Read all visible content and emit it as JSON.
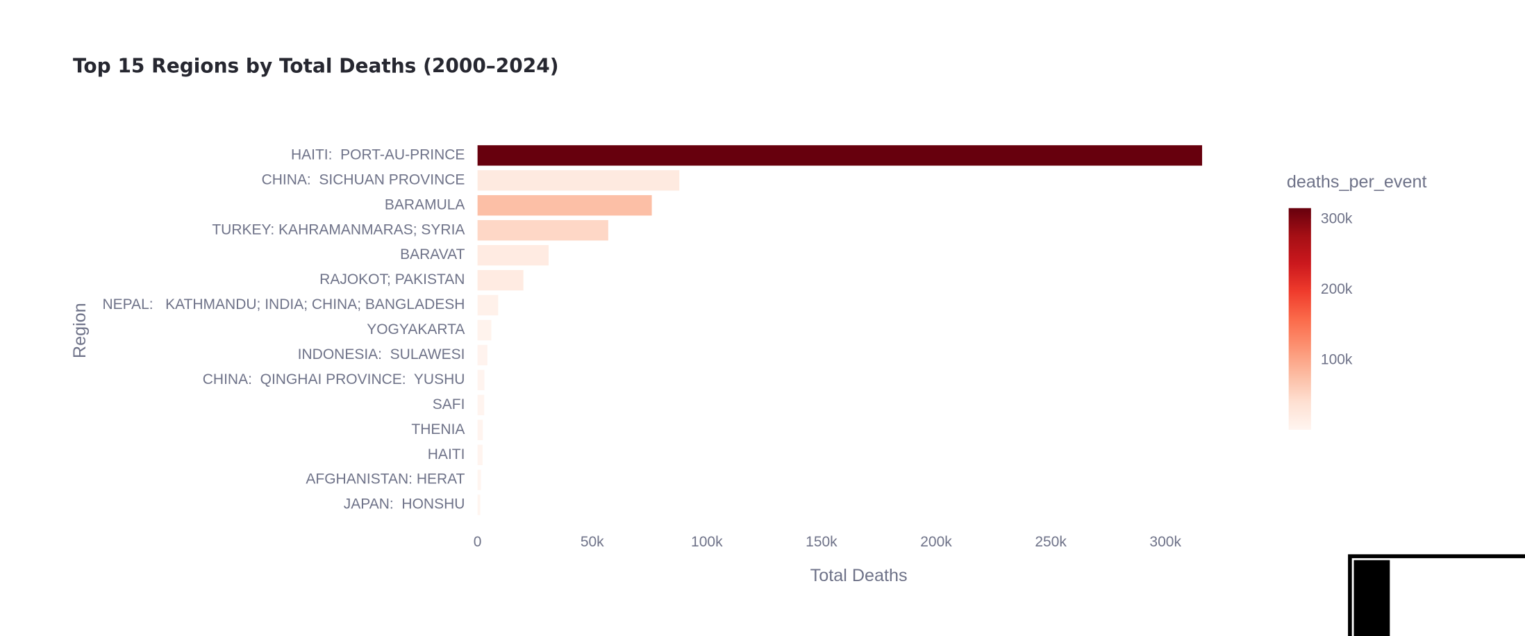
{
  "chart_data": {
    "type": "bar",
    "orientation": "horizontal",
    "title": "Top 15 Regions by Total Deaths (2000–2024)",
    "x_label": "Total Deaths",
    "y_label": "Region",
    "categories": [
      "HAITI:  PORT-AU-PRINCE",
      "CHINA:  SICHUAN PROVINCE",
      "BARAMULA",
      "TURKEY: KAHRAMANMARAS; SYRIA",
      "BARAVAT",
      "RAJOKOT; PAKISTAN",
      "NEPAL:   KATHMANDU; INDIA; CHINA; BANGLADESH",
      "YOGYAKARTA",
      "INDONESIA:  SULAWESI",
      "CHINA:  QINGHAI PROVINCE:  YUSHU",
      "SAFI",
      "THENIA",
      "HAITI",
      "AFGHANISTAN: HERAT",
      "JAPAN:  HONSHU"
    ],
    "values": [
      316000,
      88000,
      76000,
      57000,
      31000,
      20000,
      9000,
      6000,
      4300,
      3000,
      2900,
      2300,
      2200,
      1500,
      1200
    ],
    "color_title": "deaths_per_event",
    "color_values": [
      316000,
      22000,
      76000,
      50000,
      20000,
      20000,
      9000,
      5700,
      4300,
      3000,
      2900,
      2300,
      2200,
      1500,
      1200
    ],
    "color_range": [
      1200,
      316000
    ],
    "colorscale": [
      "#fff5f0",
      "#fee0d2",
      "#fcbba1",
      "#fc9272",
      "#fb6a4a",
      "#ef3b2c",
      "#cb181d",
      "#a50f15",
      "#67000d"
    ],
    "color_ticks": [
      {
        "value": 100000,
        "label": "100k"
      },
      {
        "value": 200000,
        "label": "200k"
      },
      {
        "value": 300000,
        "label": "300k"
      }
    ],
    "xlim": [
      0,
      316000
    ],
    "xticks": [
      0,
      {
        "value": 50000,
        "label": "50k"
      },
      {
        "value": 100000,
        "label": "100k"
      },
      {
        "value": 150000,
        "label": "150k"
      },
      {
        "value": 200000,
        "label": "200k"
      },
      {
        "value": 250000,
        "label": "250k"
      },
      {
        "value": 300000,
        "label": "300k"
      }
    ]
  }
}
